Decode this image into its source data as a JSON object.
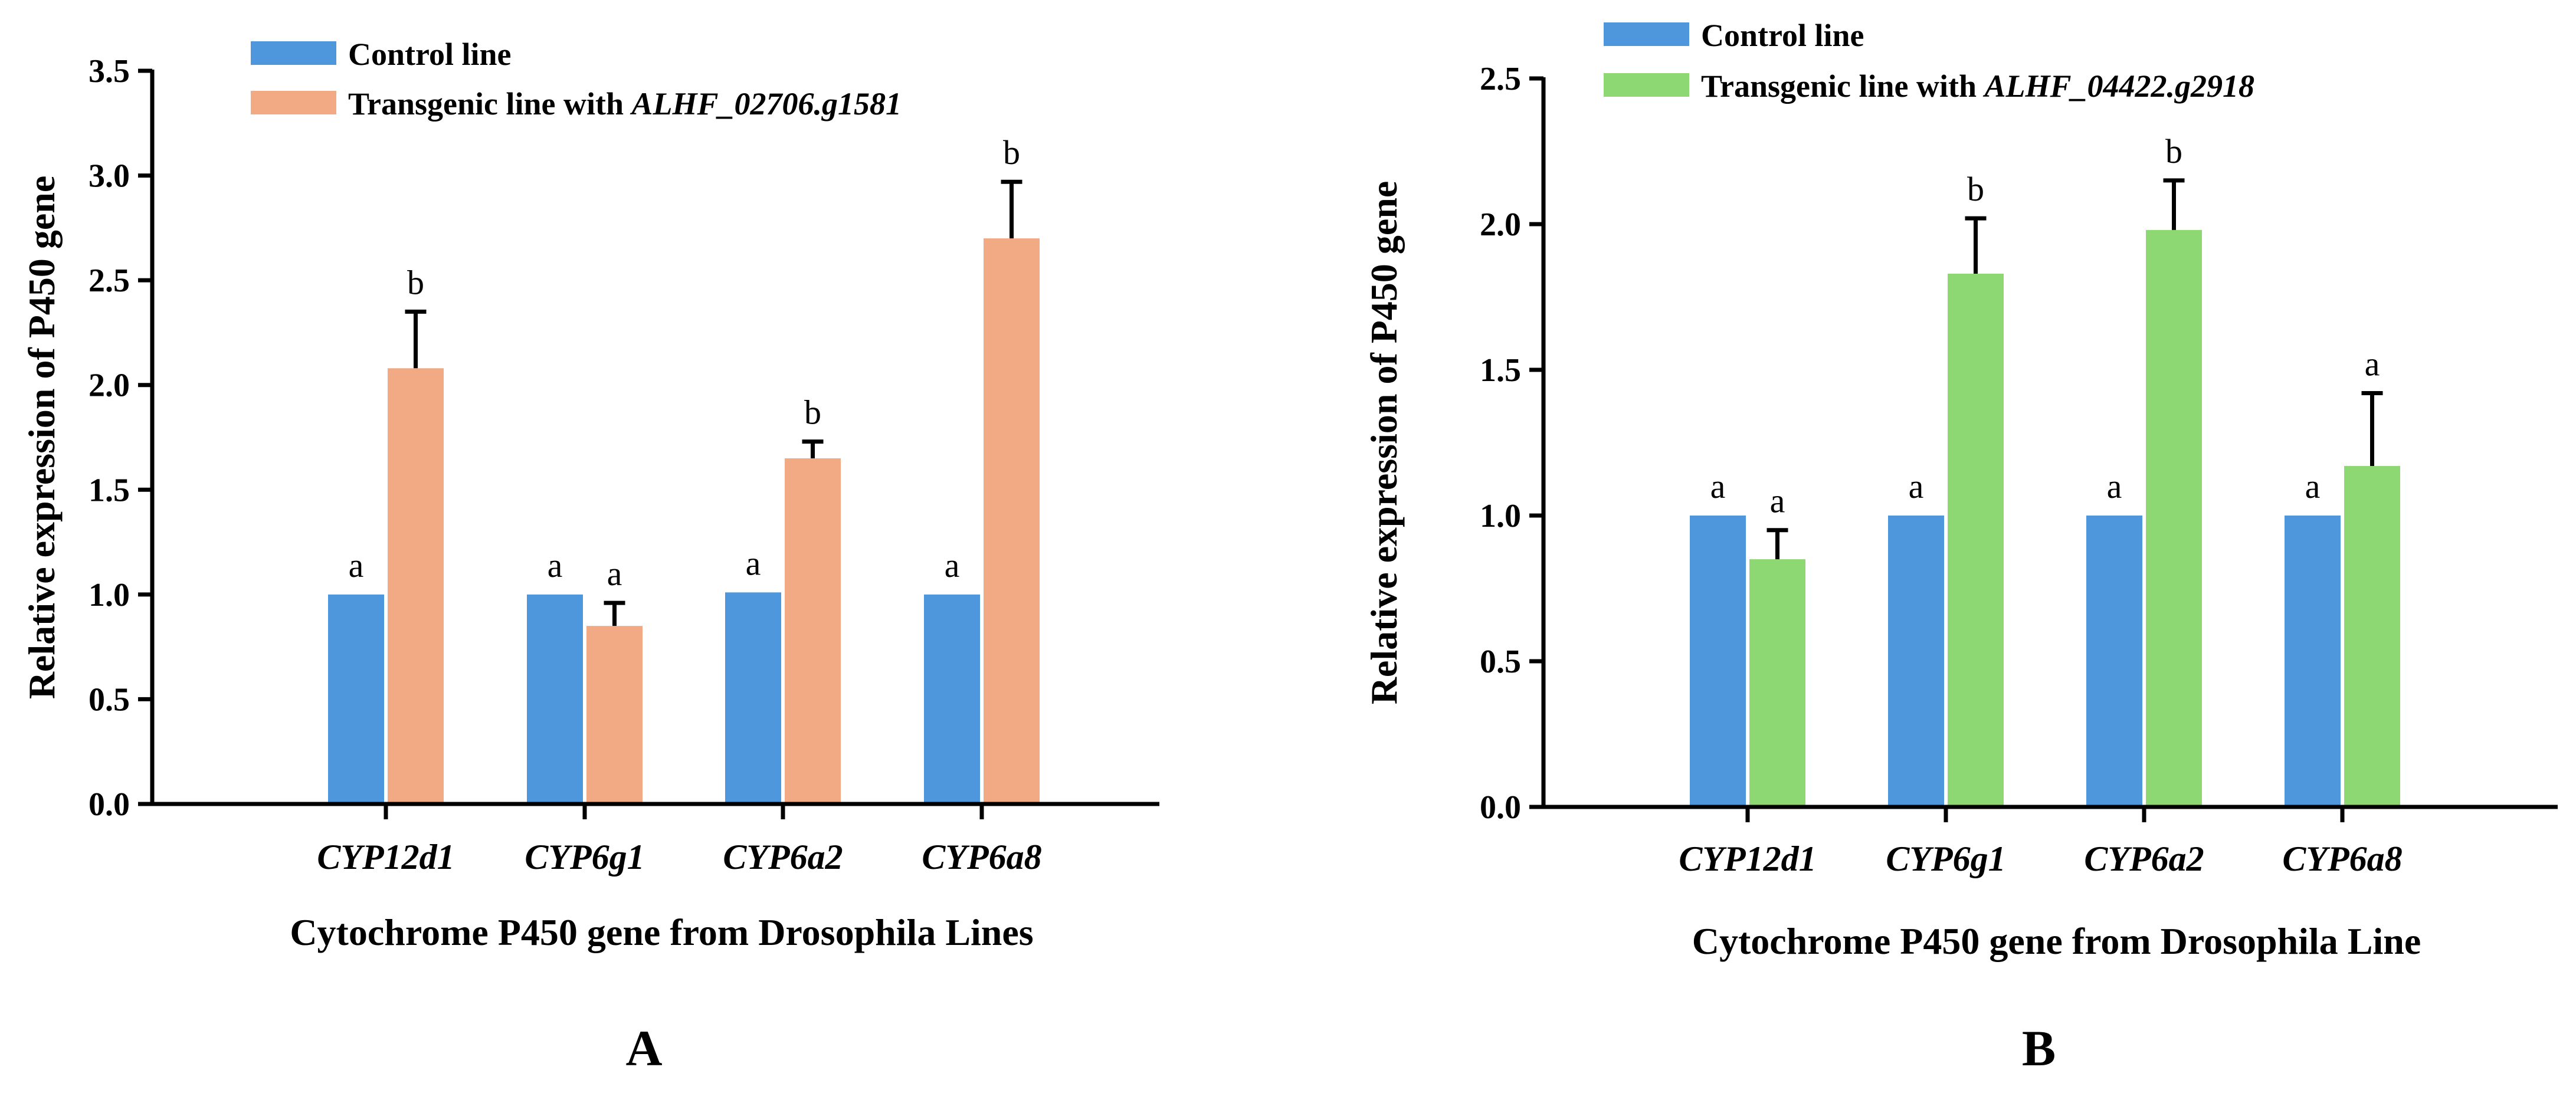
{
  "colors": {
    "control": "#4f97dc",
    "transgenic_a": "#f2aa85",
    "transgenic_b": "#8dd873",
    "axis": "#000000"
  },
  "chart_data": [
    {
      "type": "bar",
      "panel_label": "A",
      "xlabel": "Cytochrome P450 gene from Drosophila Lines",
      "ylabel": "Relative expression of P450 gene",
      "ylim": [
        0,
        3.5
      ],
      "yticks": [
        "0.0",
        "0.5",
        "1.0",
        "1.5",
        "2.0",
        "2.5",
        "3.0",
        "3.5"
      ],
      "grid": false,
      "legend_position": "top-left",
      "categories": [
        "CYP12d1",
        "CYP6g1",
        "CYP6a2",
        "CYP6a8"
      ],
      "series": [
        {
          "name": "Control line",
          "legend_prefix": "Control line",
          "legend_gene": "",
          "color_key": "control",
          "values": [
            1.0,
            1.0,
            1.01,
            1.0
          ],
          "errors": [
            0,
            0,
            0,
            0
          ],
          "labels": [
            "a",
            "a",
            "a",
            "a"
          ]
        },
        {
          "name": "Transgenic line with ALHF_02706.g1581",
          "legend_prefix": "Transgenic line with ",
          "legend_gene": "ALHF_02706.g1581",
          "color_key": "transgenic_a",
          "values": [
            2.08,
            0.85,
            1.65,
            2.7
          ],
          "errors": [
            0.27,
            0.11,
            0.08,
            0.27
          ],
          "labels": [
            "b",
            "a",
            "b",
            "b"
          ]
        }
      ]
    },
    {
      "type": "bar",
      "panel_label": "B",
      "xlabel": "Cytochrome P450 gene from Drosophila Line",
      "ylabel": "Relative expression of P450 gene",
      "ylim": [
        0,
        2.5
      ],
      "yticks": [
        "0.0",
        "0.5",
        "1.0",
        "1.5",
        "2.0",
        "2.5"
      ],
      "grid": false,
      "legend_position": "top-left",
      "categories": [
        "CYP12d1",
        "CYP6g1",
        "CYP6a2",
        "CYP6a8"
      ],
      "series": [
        {
          "name": "Control line",
          "legend_prefix": "Control line",
          "legend_gene": "",
          "color_key": "control",
          "values": [
            1.0,
            1.0,
            1.0,
            1.0
          ],
          "errors": [
            0,
            0,
            0,
            0
          ],
          "labels": [
            "a",
            "a",
            "a",
            "a"
          ]
        },
        {
          "name": "Transgenic line with ALHF_04422.g2918",
          "legend_prefix": "Transgenic line with ",
          "legend_gene": "ALHF_04422.g2918",
          "color_key": "transgenic_b",
          "values": [
            0.85,
            1.83,
            1.98,
            1.17
          ],
          "errors": [
            0.1,
            0.19,
            0.17,
            0.25
          ],
          "labels": [
            "a",
            "b",
            "b",
            "a"
          ]
        }
      ]
    }
  ]
}
